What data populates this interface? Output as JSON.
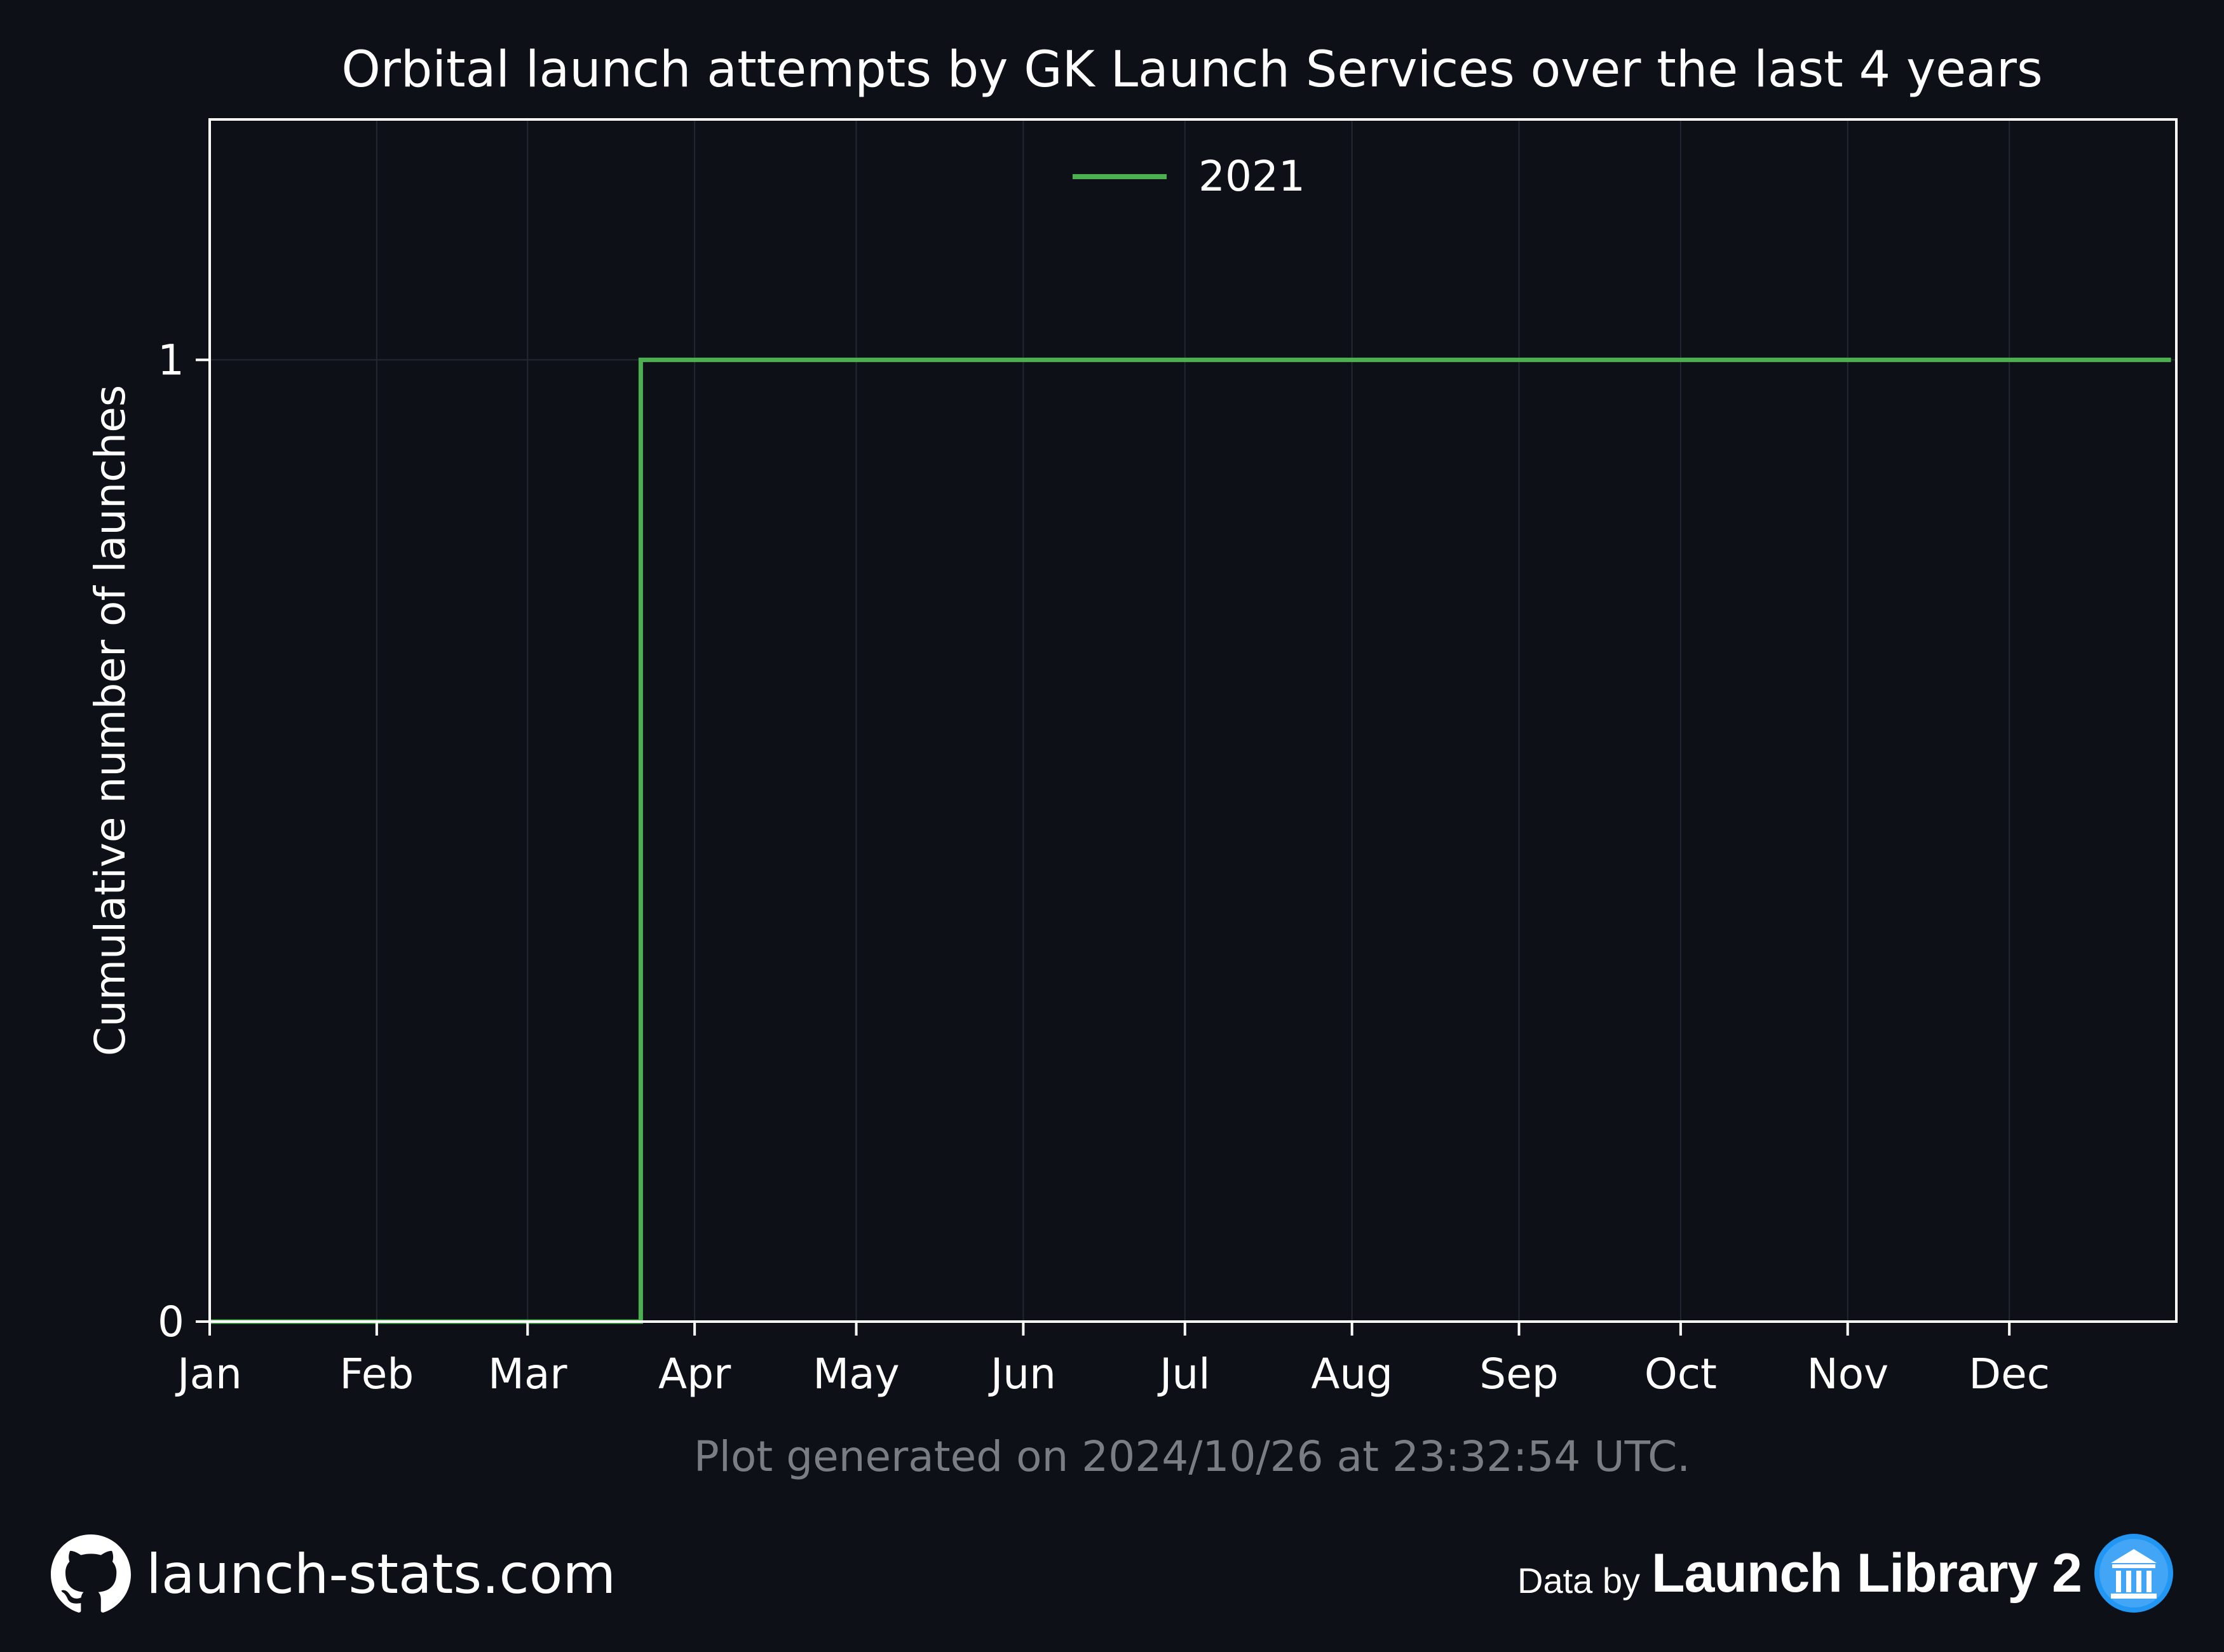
{
  "chart_data": {
    "type": "line",
    "step": true,
    "title": "Orbital launch attempts by GK Launch Services over the last 4 years",
    "xlabel": "",
    "ylabel": "Cumulative number of launches",
    "x_tick_labels": [
      "Jan",
      "Feb",
      "Mar",
      "Apr",
      "May",
      "Jun",
      "Jul",
      "Aug",
      "Sep",
      "Oct",
      "Nov",
      "Dec"
    ],
    "y_ticks": [
      0,
      1
    ],
    "xlim_day_of_year": [
      1,
      366
    ],
    "ylim": [
      0,
      1.25
    ],
    "grid": true,
    "legend_position": "upper center",
    "series": [
      {
        "name": "2021",
        "color": "#4caf50",
        "points": [
          {
            "x": "2021-01-01",
            "y": 0
          },
          {
            "x": "2021-03-22",
            "y": 0
          },
          {
            "x": "2021-03-22",
            "y": 1
          },
          {
            "x": "2021-12-31",
            "y": 1
          }
        ]
      }
    ]
  },
  "footer": {
    "generated_note": "Plot generated on 2024/10/26 at 23:32:54 UTC.",
    "site": "launch-stats.com",
    "data_by_label": "Data by",
    "data_source": "Launch Library 2"
  },
  "colors": {
    "background": "#0d1017",
    "axis": "#ffffff",
    "grid": "#222833",
    "note": "#7a7d82",
    "logo_blue": "#2196f3"
  },
  "icons": {
    "site": "github-icon",
    "data_source": "launch-library-icon"
  }
}
